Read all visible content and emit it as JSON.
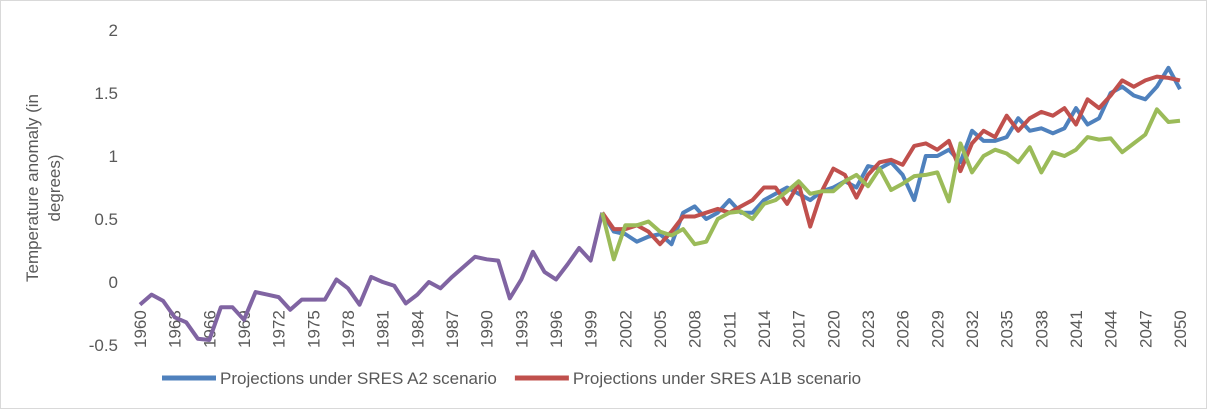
{
  "chart_data": {
    "type": "line",
    "y_label": "Temperature anomaly (in degrees)",
    "x": [
      1960,
      1961,
      1962,
      1963,
      1964,
      1965,
      1966,
      1967,
      1968,
      1969,
      1970,
      1971,
      1972,
      1973,
      1974,
      1975,
      1976,
      1977,
      1978,
      1979,
      1980,
      1981,
      1982,
      1983,
      1984,
      1985,
      1986,
      1987,
      1988,
      1989,
      1990,
      1991,
      1992,
      1993,
      1994,
      1995,
      1996,
      1997,
      1998,
      1999,
      2000,
      2001,
      2002,
      2003,
      2004,
      2005,
      2006,
      2007,
      2008,
      2009,
      2010,
      2011,
      2012,
      2013,
      2014,
      2015,
      2016,
      2017,
      2018,
      2019,
      2020,
      2021,
      2022,
      2023,
      2024,
      2025,
      2026,
      2027,
      2028,
      2029,
      2030,
      2031,
      2032,
      2033,
      2034,
      2035,
      2036,
      2037,
      2038,
      2039,
      2040,
      2041,
      2042,
      2043,
      2044,
      2045,
      2046,
      2047,
      2048,
      2049,
      2050
    ],
    "xlim": [
      1960,
      2050
    ],
    "xticks": [
      1960,
      1963,
      1966,
      1969,
      1972,
      1975,
      1978,
      1981,
      1984,
      1987,
      1990,
      1993,
      1996,
      1999,
      2002,
      2005,
      2008,
      2011,
      2014,
      2017,
      2020,
      2023,
      2026,
      2029,
      2032,
      2035,
      2038,
      2041,
      2044,
      2047,
      2050
    ],
    "ylim": [
      -0.5,
      2
    ],
    "yticks": [
      -0.5,
      0,
      0.5,
      1,
      1.5,
      2
    ],
    "grid": false,
    "legend": "bottom",
    "series": [
      {
        "color": "#8064a2",
        "values": [
          -0.18,
          -0.1,
          -0.15,
          -0.28,
          -0.32,
          -0.45,
          -0.46,
          -0.2,
          -0.2,
          -0.3,
          -0.08,
          -0.1,
          -0.12,
          -0.22,
          -0.14,
          -0.14,
          -0.14,
          0.02,
          -0.05,
          -0.18,
          0.04,
          0.0,
          -0.03,
          -0.17,
          -0.1,
          0.0,
          -0.05,
          0.04,
          0.12,
          0.2,
          0.18,
          0.17,
          -0.13,
          0.02,
          0.24,
          0.08,
          0.02,
          0.14,
          0.27,
          0.17,
          0.55,
          null,
          null,
          null,
          null,
          null,
          null,
          null,
          null,
          null,
          null,
          null,
          null,
          null,
          null,
          null,
          null,
          null,
          null,
          null,
          null,
          null,
          null,
          null,
          null,
          null,
          null,
          null,
          null,
          null,
          null,
          null,
          null,
          null,
          null,
          null,
          null,
          null,
          null,
          null,
          null,
          null,
          null,
          null,
          null,
          null,
          null,
          null,
          null,
          null,
          null
        ]
      },
      {
        "name": "Projections under SRES A2 scenario",
        "color": "#4f81bd",
        "values": [
          null,
          null,
          null,
          null,
          null,
          null,
          null,
          null,
          null,
          null,
          null,
          null,
          null,
          null,
          null,
          null,
          null,
          null,
          null,
          null,
          null,
          null,
          null,
          null,
          null,
          null,
          null,
          null,
          null,
          null,
          null,
          null,
          null,
          null,
          null,
          null,
          null,
          null,
          null,
          null,
          0.55,
          0.4,
          0.38,
          0.32,
          0.36,
          0.38,
          0.3,
          0.55,
          0.6,
          0.5,
          0.55,
          0.65,
          0.55,
          0.55,
          0.65,
          0.7,
          0.75,
          0.7,
          0.65,
          0.72,
          0.75,
          0.8,
          0.75,
          0.92,
          0.9,
          0.95,
          0.85,
          0.65,
          1.0,
          1.0,
          1.05,
          0.95,
          1.2,
          1.12,
          1.12,
          1.15,
          1.3,
          1.2,
          1.22,
          1.18,
          1.22,
          1.38,
          1.25,
          1.3,
          1.5,
          1.55,
          1.48,
          1.45,
          1.55,
          1.7,
          1.53
        ]
      },
      {
        "name": "Projections under SRES A1B scenario",
        "color": "#c0504d",
        "values": [
          null,
          null,
          null,
          null,
          null,
          null,
          null,
          null,
          null,
          null,
          null,
          null,
          null,
          null,
          null,
          null,
          null,
          null,
          null,
          null,
          null,
          null,
          null,
          null,
          null,
          null,
          null,
          null,
          null,
          null,
          null,
          null,
          null,
          null,
          null,
          null,
          null,
          null,
          null,
          null,
          0.55,
          0.42,
          0.42,
          0.45,
          0.4,
          0.3,
          0.4,
          0.52,
          0.52,
          0.55,
          0.58,
          0.55,
          0.6,
          0.65,
          0.75,
          0.75,
          0.62,
          0.78,
          0.44,
          0.72,
          0.9,
          0.85,
          0.67,
          0.85,
          0.95,
          0.97,
          0.93,
          1.08,
          1.1,
          1.05,
          1.12,
          0.88,
          1.1,
          1.2,
          1.15,
          1.32,
          1.2,
          1.3,
          1.35,
          1.32,
          1.38,
          1.25,
          1.45,
          1.38,
          1.48,
          1.6,
          1.55,
          1.6,
          1.63,
          1.62,
          1.6
        ]
      },
      {
        "color": "#9bbb59",
        "values": [
          null,
          null,
          null,
          null,
          null,
          null,
          null,
          null,
          null,
          null,
          null,
          null,
          null,
          null,
          null,
          null,
          null,
          null,
          null,
          null,
          null,
          null,
          null,
          null,
          null,
          null,
          null,
          null,
          null,
          null,
          null,
          null,
          null,
          null,
          null,
          null,
          null,
          null,
          null,
          null,
          0.55,
          0.18,
          0.45,
          0.45,
          0.48,
          0.4,
          0.37,
          0.42,
          0.3,
          0.32,
          0.5,
          0.55,
          0.56,
          0.5,
          0.62,
          0.65,
          0.72,
          0.8,
          0.7,
          0.72,
          0.72,
          0.8,
          0.85,
          0.76,
          0.9,
          0.73,
          0.78,
          0.84,
          0.85,
          0.87,
          0.64,
          1.1,
          0.87,
          1.0,
          1.05,
          1.02,
          0.95,
          1.07,
          0.87,
          1.03,
          1.0,
          1.05,
          1.15,
          1.13,
          1.14,
          1.03,
          1.1,
          1.17,
          1.37,
          1.27,
          1.28
        ]
      }
    ]
  }
}
